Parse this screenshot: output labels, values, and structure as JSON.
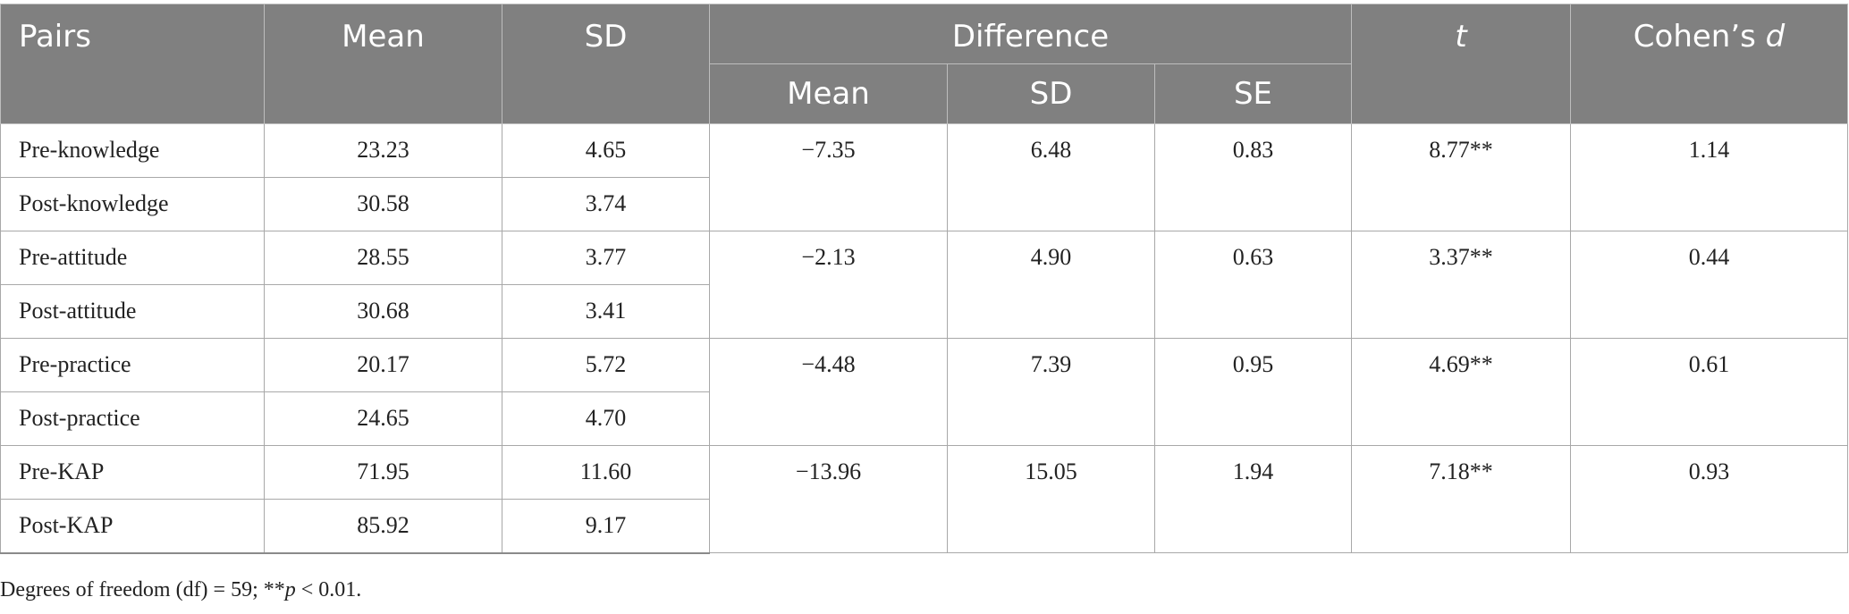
{
  "header": {
    "pairs": "Pairs",
    "mean": "Mean",
    "sd": "SD",
    "difference": "Difference",
    "diff_mean": "Mean",
    "diff_sd": "SD",
    "diff_se": "SE",
    "t": "t",
    "cohens_prefix": "Cohen’s ",
    "cohens_d": "d"
  },
  "groups": [
    {
      "rows": [
        {
          "pair": "Pre-knowledge",
          "mean": "23.23",
          "sd": "4.65"
        },
        {
          "pair": "Post-knowledge",
          "mean": "30.58",
          "sd": "3.74"
        }
      ],
      "diff_mean": "−7.35",
      "diff_sd": "6.48",
      "diff_se": "0.83",
      "t": "8.77**",
      "d": "1.14"
    },
    {
      "rows": [
        {
          "pair": "Pre-attitude",
          "mean": "28.55",
          "sd": "3.77"
        },
        {
          "pair": "Post-attitude",
          "mean": "30.68",
          "sd": "3.41"
        }
      ],
      "diff_mean": "−2.13",
      "diff_sd": "4.90",
      "diff_se": "0.63",
      "t": "3.37**",
      "d": "0.44"
    },
    {
      "rows": [
        {
          "pair": "Pre-practice",
          "mean": "20.17",
          "sd": "5.72"
        },
        {
          "pair": "Post-practice",
          "mean": "24.65",
          "sd": "4.70"
        }
      ],
      "diff_mean": "−4.48",
      "diff_sd": "7.39",
      "diff_se": "0.95",
      "t": "4.69**",
      "d": "0.61"
    },
    {
      "rows": [
        {
          "pair": "Pre-KAP",
          "mean": "71.95",
          "sd": "11.60"
        },
        {
          "pair": "Post-KAP",
          "mean": "85.92",
          "sd": "9.17"
        }
      ],
      "diff_mean": "−13.96",
      "diff_sd": "15.05",
      "diff_se": "1.94",
      "t": "7.18**",
      "d": "0.93"
    }
  ],
  "note": {
    "prefix": "Degrees of freedom (df) = 59; **",
    "p": "p",
    "suffix": " < 0.01."
  }
}
